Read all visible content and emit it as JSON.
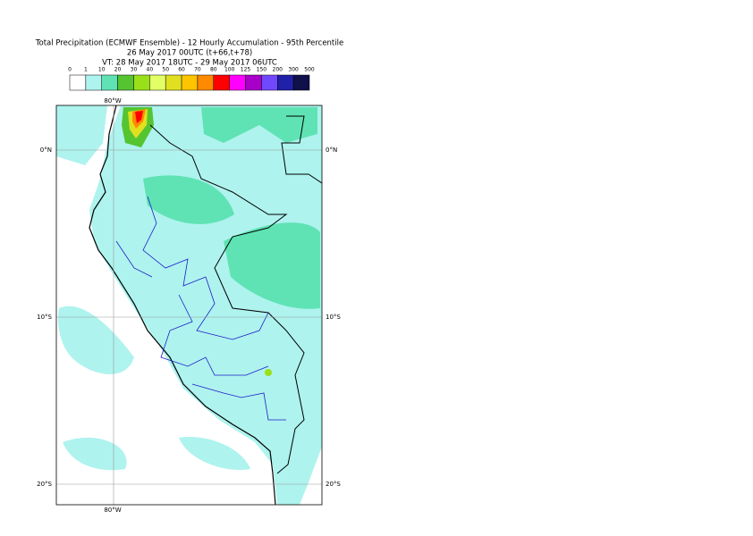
{
  "header": {
    "title_lines": [
      "Total Precipitation (ECMWF Ensemble) - 12 Hourly Accumulation - 95th Percentile",
      "26 May 2017 00UTC (t+66,t+78)",
      "VT: 28 May 2017 18UTC - 29 May 2017 06UTC"
    ]
  },
  "legend": {
    "labels": [
      "0",
      "1",
      "10",
      "20",
      "30",
      "40",
      "50",
      "60",
      "70",
      "80",
      "100",
      "125",
      "150",
      "200",
      "300",
      "500"
    ],
    "colors": [
      "#ffffff",
      "#aef3ee",
      "#5fe3b5",
      "#55c431",
      "#9ae01a",
      "#e2ff66",
      "#e0e020",
      "#ffc400",
      "#ff8a00",
      "#ff0000",
      "#ff00ff",
      "#a800c8",
      "#7248ff",
      "#2020a8",
      "#10104a"
    ]
  },
  "map": {
    "lon_labels": [
      {
        "text": "80°W",
        "side": "top"
      },
      {
        "text": "80°W",
        "side": "bottom"
      }
    ],
    "lat_labels": [
      {
        "text": "0°N"
      },
      {
        "text": "10°S"
      },
      {
        "text": "20°S"
      }
    ]
  }
}
